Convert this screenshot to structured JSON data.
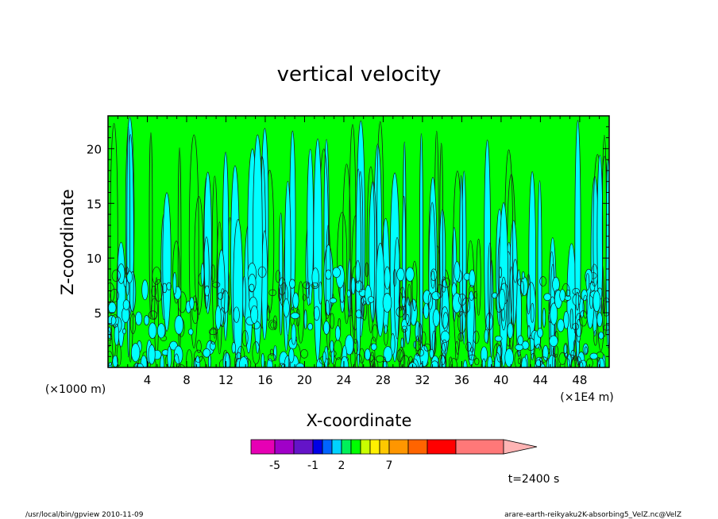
{
  "chart_data": {
    "type": "contour",
    "title": "vertical velocity",
    "xlabel": "X-coordinate",
    "ylabel": "Z-coordinate",
    "x_unit": "(×1E4 m)",
    "y_unit": "(×1000 m)",
    "xlim": [
      0,
      51
    ],
    "ylim": [
      0,
      23
    ],
    "x_ticks": [
      "4",
      "8",
      "12",
      "16",
      "20",
      "24",
      "28",
      "32",
      "36",
      "40",
      "44",
      "48"
    ],
    "y_ticks": [
      "5",
      "10",
      "15",
      "20"
    ],
    "colorbar": {
      "levels": [
        -7,
        -6,
        -5,
        -4,
        -3,
        -2,
        -1,
        0,
        1,
        2,
        3,
        4,
        5,
        6,
        7,
        8,
        9
      ],
      "colors": [
        "#e600b4",
        "#a000c8",
        "#6414c8",
        "#0000e6",
        "#0064ff",
        "#00d2ff",
        "#00f05a",
        "#00ff00",
        "#c8ff00",
        "#fff000",
        "#ffc800",
        "#ff9600",
        "#ff6400",
        "#ff0000",
        "#ff7878",
        "#ff7878",
        "#ffb4b4"
      ],
      "labels": [
        "-5",
        "-1",
        "2",
        "7"
      ]
    },
    "time_label": "t=2400 s"
  },
  "footer": {
    "left": "/usr/local/bin/gpview   2010-11-09",
    "right": "arare-earth-reikyaku2K-absorbing5_VelZ.nc@VelZ"
  }
}
